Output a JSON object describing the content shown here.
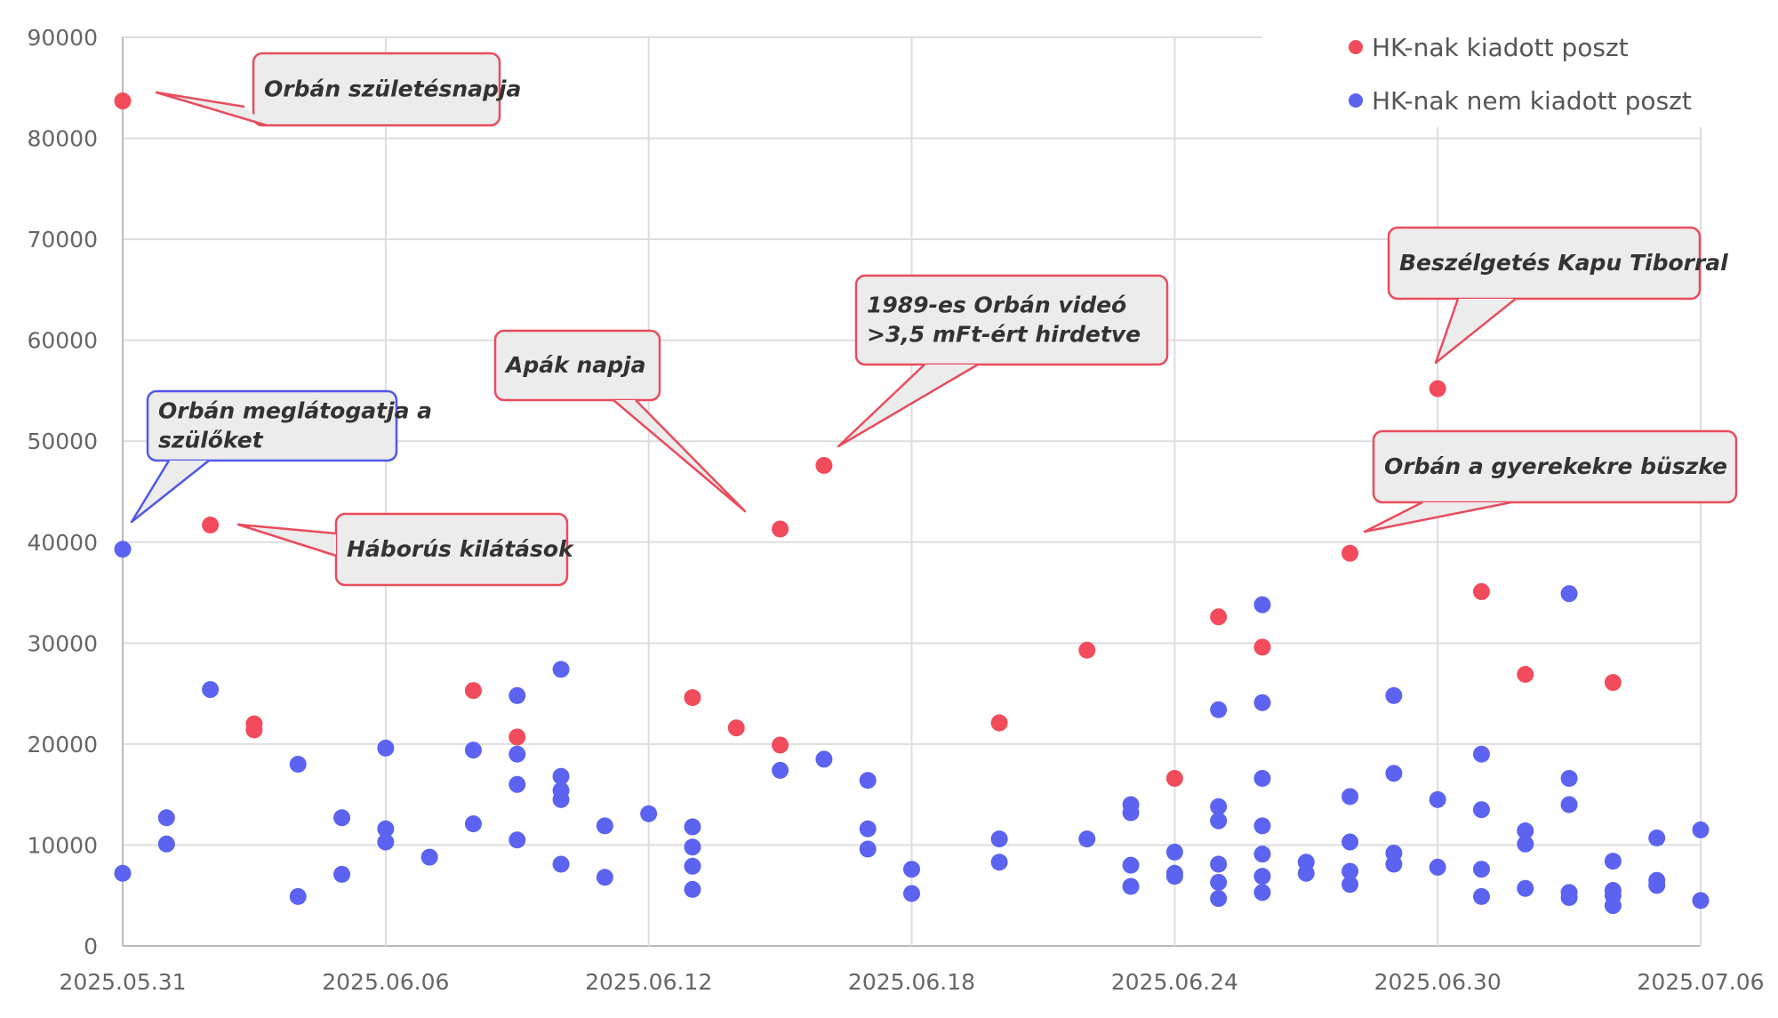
{
  "chart_data": {
    "type": "scatter",
    "xlim": [
      "2025-05-31",
      "2025-07-06"
    ],
    "ylim": [
      0,
      90000
    ],
    "x_ticks": [
      "2025.05.31",
      "2025.06.06",
      "2025.06.12",
      "2025.06.18",
      "2025.06.24",
      "2025.06.30",
      "2025.07.06"
    ],
    "y_ticks": [
      "0",
      "10000",
      "20000",
      "30000",
      "40000",
      "50000",
      "60000",
      "70000",
      "80000",
      "90000"
    ],
    "grid": true,
    "legend_position": "top-right",
    "series": [
      {
        "name": "HK-nak kiadott poszt",
        "color": "#f24b5b",
        "points": [
          [
            "2025-05-31",
            83700
          ],
          [
            "2025-06-02",
            41700
          ],
          [
            "2025-06-03",
            22000
          ],
          [
            "2025-06-03",
            21400
          ],
          [
            "2025-06-08",
            25300
          ],
          [
            "2025-06-09",
            20700
          ],
          [
            "2025-06-13",
            24600
          ],
          [
            "2025-06-14",
            21600
          ],
          [
            "2025-06-15",
            41300
          ],
          [
            "2025-06-15",
            19900
          ],
          [
            "2025-06-16",
            47600
          ],
          [
            "2025-06-20",
            22100
          ],
          [
            "2025-06-22",
            29300
          ],
          [
            "2025-06-24",
            16600
          ],
          [
            "2025-06-25",
            32600
          ],
          [
            "2025-06-26",
            29600
          ],
          [
            "2025-06-28",
            38900
          ],
          [
            "2025-06-30",
            55200
          ],
          [
            "2025-07-01",
            35100
          ],
          [
            "2025-07-02",
            26900
          ],
          [
            "2025-07-04",
            26100
          ]
        ]
      },
      {
        "name": "HK-nak nem kiadott poszt",
        "color": "#5b63f0",
        "points": [
          [
            "2025-05-31",
            39300
          ],
          [
            "2025-05-31",
            7200
          ],
          [
            "2025-06-01",
            12700
          ],
          [
            "2025-06-01",
            10100
          ],
          [
            "2025-06-02",
            25400
          ],
          [
            "2025-06-04",
            18000
          ],
          [
            "2025-06-04",
            4900
          ],
          [
            "2025-06-05",
            12700
          ],
          [
            "2025-06-05",
            7100
          ],
          [
            "2025-06-06",
            19600
          ],
          [
            "2025-06-06",
            11600
          ],
          [
            "2025-06-06",
            10300
          ],
          [
            "2025-06-07",
            8800
          ],
          [
            "2025-06-08",
            19400
          ],
          [
            "2025-06-08",
            12100
          ],
          [
            "2025-06-09",
            24800
          ],
          [
            "2025-06-09",
            19000
          ],
          [
            "2025-06-09",
            16000
          ],
          [
            "2025-06-09",
            10500
          ],
          [
            "2025-06-10",
            27400
          ],
          [
            "2025-06-10",
            16800
          ],
          [
            "2025-06-10",
            15400
          ],
          [
            "2025-06-10",
            14500
          ],
          [
            "2025-06-10",
            8100
          ],
          [
            "2025-06-11",
            11900
          ],
          [
            "2025-06-11",
            6800
          ],
          [
            "2025-06-12",
            13100
          ],
          [
            "2025-06-13",
            11800
          ],
          [
            "2025-06-13",
            9800
          ],
          [
            "2025-06-13",
            7900
          ],
          [
            "2025-06-13",
            5600
          ],
          [
            "2025-06-15",
            17400
          ],
          [
            "2025-06-16",
            18500
          ],
          [
            "2025-06-17",
            16400
          ],
          [
            "2025-06-17",
            11600
          ],
          [
            "2025-06-17",
            9600
          ],
          [
            "2025-06-18",
            7600
          ],
          [
            "2025-06-18",
            5200
          ],
          [
            "2025-06-20",
            10600
          ],
          [
            "2025-06-20",
            8300
          ],
          [
            "2025-06-22",
            10600
          ],
          [
            "2025-06-23",
            14000
          ],
          [
            "2025-06-23",
            13200
          ],
          [
            "2025-06-23",
            8000
          ],
          [
            "2025-06-23",
            5900
          ],
          [
            "2025-06-24",
            9300
          ],
          [
            "2025-06-24",
            7200
          ],
          [
            "2025-06-24",
            6900
          ],
          [
            "2025-06-25",
            23400
          ],
          [
            "2025-06-25",
            13800
          ],
          [
            "2025-06-25",
            12400
          ],
          [
            "2025-06-25",
            8100
          ],
          [
            "2025-06-25",
            6300
          ],
          [
            "2025-06-25",
            4700
          ],
          [
            "2025-06-26",
            33800
          ],
          [
            "2025-06-26",
            24100
          ],
          [
            "2025-06-26",
            16600
          ],
          [
            "2025-06-26",
            11900
          ],
          [
            "2025-06-26",
            9100
          ],
          [
            "2025-06-26",
            6900
          ],
          [
            "2025-06-26",
            5300
          ],
          [
            "2025-06-27",
            8300
          ],
          [
            "2025-06-27",
            7200
          ],
          [
            "2025-06-28",
            14800
          ],
          [
            "2025-06-28",
            10300
          ],
          [
            "2025-06-28",
            7400
          ],
          [
            "2025-06-28",
            6100
          ],
          [
            "2025-06-29",
            24800
          ],
          [
            "2025-06-29",
            17100
          ],
          [
            "2025-06-29",
            9200
          ],
          [
            "2025-06-29",
            8100
          ],
          [
            "2025-06-30",
            14500
          ],
          [
            "2025-06-30",
            7800
          ],
          [
            "2025-07-01",
            19000
          ],
          [
            "2025-07-01",
            13500
          ],
          [
            "2025-07-01",
            7600
          ],
          [
            "2025-07-01",
            4900
          ],
          [
            "2025-07-02",
            11400
          ],
          [
            "2025-07-02",
            10100
          ],
          [
            "2025-07-02",
            5700
          ],
          [
            "2025-07-03",
            34900
          ],
          [
            "2025-07-03",
            16600
          ],
          [
            "2025-07-03",
            14000
          ],
          [
            "2025-07-03",
            5300
          ],
          [
            "2025-07-03",
            4800
          ],
          [
            "2025-07-04",
            8400
          ],
          [
            "2025-07-04",
            5500
          ],
          [
            "2025-07-04",
            5000
          ],
          [
            "2025-07-04",
            4000
          ],
          [
            "2025-07-05",
            10700
          ],
          [
            "2025-07-05",
            6500
          ],
          [
            "2025-07-05",
            6000
          ],
          [
            "2025-07-06",
            11500
          ],
          [
            "2025-07-06",
            4500
          ]
        ]
      }
    ],
    "annotations": [
      {
        "lines": [
          "Orbán születésnapja"
        ],
        "color": "#e84c5c",
        "target": [
          "2025-05-31",
          83700
        ]
      },
      {
        "lines": [
          "Orbán meglátogatja a",
          "szülőket"
        ],
        "color": "#5057e8",
        "target": [
          "2025-05-31",
          39300
        ]
      },
      {
        "lines": [
          "Háborús kilátások"
        ],
        "color": "#e84c5c",
        "target": [
          "2025-06-02",
          41700
        ]
      },
      {
        "lines": [
          "Apák napja"
        ],
        "color": "#e84c5c",
        "target": [
          "2025-06-15",
          41300
        ]
      },
      {
        "lines": [
          "1989-es Orbán videó",
          ">3,5 mFt-ért hirdetve"
        ],
        "color": "#e84c5c",
        "target": [
          "2025-06-16",
          47600
        ]
      },
      {
        "lines": [
          "Beszélgetés Kapu Tiborral"
        ],
        "color": "#e84c5c",
        "target": [
          "2025-06-30",
          55200
        ]
      },
      {
        "lines": [
          "Orbán a gyerekekre büszke"
        ],
        "color": "#e84c5c",
        "target": [
          "2025-06-28",
          38900
        ]
      }
    ]
  }
}
